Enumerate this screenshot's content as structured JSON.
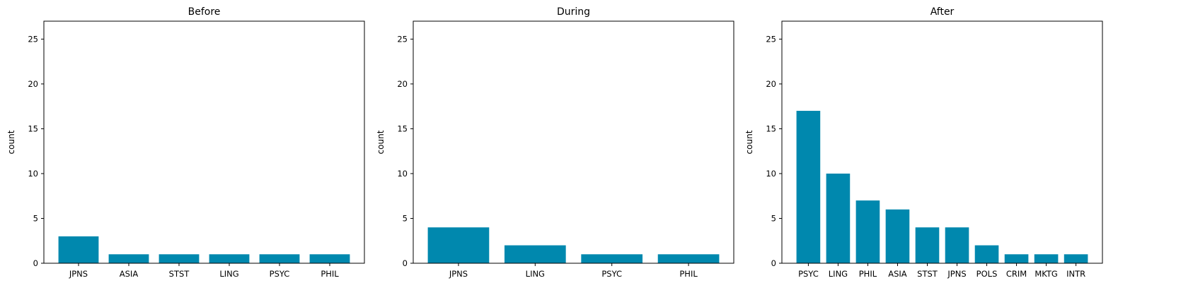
{
  "chart_data": [
    {
      "type": "bar",
      "title": "Before",
      "xlabel": "",
      "ylabel": "count",
      "ylim": [
        0,
        27
      ],
      "yticks": [
        0,
        5,
        10,
        15,
        20,
        25
      ],
      "grid": false,
      "color": "#0088AE",
      "categories": [
        "JPNS",
        "ASIA",
        "STST",
        "LING",
        "PSYC",
        "PHIL"
      ],
      "values": [
        3,
        1,
        1,
        1,
        1,
        1
      ]
    },
    {
      "type": "bar",
      "title": "During",
      "xlabel": "",
      "ylabel": "count",
      "ylim": [
        0,
        27
      ],
      "yticks": [
        0,
        5,
        10,
        15,
        20,
        25
      ],
      "grid": false,
      "color": "#0088AE",
      "categories": [
        "JPNS",
        "LING",
        "PSYC",
        "PHIL"
      ],
      "values": [
        4,
        2,
        1,
        1
      ]
    },
    {
      "type": "bar",
      "title": "After",
      "xlabel": "",
      "ylabel": "count",
      "ylim": [
        0,
        27
      ],
      "yticks": [
        0,
        5,
        10,
        15,
        20,
        25
      ],
      "grid": false,
      "color": "#0088AE",
      "categories": [
        "PSYC",
        "LING",
        "PHIL",
        "ASIA",
        "STST",
        "JPNS",
        "POLS",
        "CRIM",
        "MKTG",
        "INTR"
      ],
      "values": [
        17,
        10,
        7,
        6,
        4,
        4,
        2,
        1,
        1,
        1
      ]
    }
  ]
}
